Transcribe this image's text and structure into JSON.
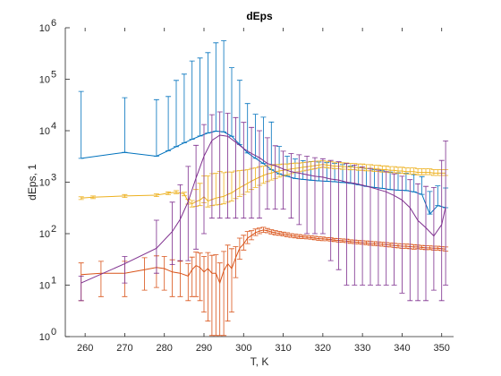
{
  "chart_data": {
    "type": "line",
    "title": "dEps",
    "xlabel": "T, K",
    "ylabel": "dEps, 1",
    "xlim": [
      255,
      353
    ],
    "ylim": [
      1,
      1000000
    ],
    "yscale": "log",
    "xticks": [
      260,
      270,
      280,
      290,
      300,
      310,
      320,
      330,
      340,
      350
    ],
    "yticks": [
      {
        "value": 1,
        "base": "10",
        "exp": "0"
      },
      {
        "value": 10,
        "base": "10",
        "exp": "1"
      },
      {
        "value": 100,
        "base": "10",
        "exp": "2"
      },
      {
        "value": 1000,
        "base": "10",
        "exp": "3"
      },
      {
        "value": 10000,
        "base": "10",
        "exp": "4"
      },
      {
        "value": 100000,
        "base": "10",
        "exp": "5"
      },
      {
        "value": 1000000,
        "base": "10",
        "exp": "6"
      }
    ],
    "grid": false,
    "legend": "none",
    "series": [
      {
        "color": "#0072BD",
        "x": [
          259,
          270,
          278,
          281,
          283,
          285,
          287,
          289,
          291,
          293,
          295,
          297,
          299,
          301,
          303,
          305,
          307,
          309,
          311,
          313,
          315,
          317,
          319,
          321,
          323,
          325,
          327,
          329,
          331,
          333,
          335,
          337,
          339,
          341,
          343,
          345,
          347,
          349,
          351
        ],
        "y": [
          2900,
          3800,
          3200,
          4100,
          4900,
          5800,
          6800,
          7900,
          9000,
          9800,
          9500,
          7800,
          5400,
          3700,
          2900,
          2300,
          1750,
          1450,
          1300,
          1180,
          1130,
          1090,
          1060,
          1040,
          1020,
          990,
          950,
          890,
          830,
          790,
          760,
          720,
          700,
          690,
          650,
          580,
          240,
          350,
          320
        ],
        "err_lo": [
          0,
          0,
          0,
          0,
          0,
          0,
          0,
          0,
          0,
          0,
          0,
          0,
          0,
          0,
          0,
          0,
          0,
          0,
          0,
          0,
          0,
          0,
          0,
          0,
          0,
          0,
          0,
          0,
          0,
          0,
          0,
          0,
          0,
          0,
          0,
          0,
          0,
          0,
          0
        ],
        "err_hi": [
          55000,
          40000,
          37000,
          42000,
          90000,
          120000,
          220000,
          250000,
          320000,
          500000,
          550000,
          160000,
          90000,
          30000,
          18000,
          16000,
          13000,
          3500,
          1900,
          1650,
          1500,
          1430,
          1400,
          1350,
          1300,
          1200,
          1100,
          1050,
          1000,
          950,
          900,
          850,
          820,
          800,
          750,
          700,
          420,
          500,
          450
        ]
      },
      {
        "color": "#D95319",
        "x": [
          259,
          264,
          270,
          275,
          278,
          280,
          282,
          284,
          286,
          287,
          288,
          289,
          290,
          291,
          292,
          293,
          294,
          295,
          296,
          297,
          298,
          299,
          300,
          301,
          302,
          303,
          304,
          305,
          306,
          307,
          308,
          309,
          310,
          311,
          312,
          313,
          314,
          315,
          316,
          317,
          318,
          319,
          320,
          321,
          322,
          323,
          324,
          325,
          326,
          327,
          328,
          329,
          330,
          331,
          332,
          333,
          334,
          335,
          336,
          337,
          338,
          339,
          340,
          341,
          342,
          343,
          344,
          345,
          346,
          347,
          348,
          349,
          350,
          351
        ],
        "y": [
          16,
          17,
          17,
          20,
          22,
          21,
          18,
          17,
          15,
          20,
          24,
          22,
          18,
          21,
          17,
          17,
          11,
          19,
          26,
          21,
          34,
          52,
          63,
          82,
          92,
          105,
          112,
          118,
          114,
          108,
          104,
          101,
          98,
          95,
          92,
          90,
          88,
          86,
          85,
          84,
          82,
          80,
          79,
          78,
          77,
          75,
          74,
          73,
          72,
          70,
          69,
          68,
          67,
          66,
          65,
          64,
          63,
          62,
          61,
          60,
          59,
          58,
          57,
          57,
          56,
          55,
          55,
          54,
          53,
          53,
          52,
          52,
          51,
          50
        ],
        "err_lo": [
          11,
          11,
          11,
          12,
          13,
          13,
          12,
          11,
          10,
          14,
          18,
          17,
          15,
          19,
          16,
          16,
          10,
          18,
          24,
          18,
          20,
          20,
          15,
          18,
          16,
          13,
          12,
          12,
          10,
          9,
          9,
          8,
          8,
          8,
          7,
          7,
          7,
          6,
          6,
          6,
          6,
          6,
          6,
          5,
          5,
          5,
          5,
          5,
          5,
          5,
          5,
          5,
          5,
          5,
          5,
          5,
          5,
          5,
          5,
          5,
          5,
          5,
          5,
          5,
          5,
          5,
          4,
          4,
          4,
          4,
          4,
          4,
          4,
          4
        ],
        "err_hi": [
          11,
          12,
          12,
          14,
          15,
          15,
          13,
          12,
          11,
          15,
          20,
          20,
          18,
          22,
          21,
          22,
          16,
          26,
          34,
          30,
          22,
          30,
          30,
          28,
          22,
          18,
          16,
          15,
          12,
          11,
          10,
          10,
          9,
          9,
          8,
          8,
          8,
          7,
          7,
          7,
          7,
          7,
          7,
          6,
          6,
          6,
          6,
          6,
          6,
          6,
          6,
          6,
          6,
          6,
          6,
          6,
          6,
          6,
          6,
          6,
          6,
          6,
          6,
          6,
          6,
          6,
          5,
          5,
          5,
          5,
          5,
          5,
          5,
          5
        ]
      },
      {
        "color": "#EDB120",
        "x": [
          259,
          262,
          270,
          278,
          281,
          283,
          285,
          286,
          287,
          288,
          289,
          290,
          291,
          292,
          293,
          294,
          295,
          296,
          297,
          298,
          299,
          300,
          301,
          302,
          303,
          304,
          305,
          306,
          307,
          308,
          309,
          310,
          311,
          312,
          313,
          314,
          315,
          316,
          317,
          318,
          319,
          320,
          321,
          322,
          323,
          324,
          325,
          326,
          327,
          328,
          329,
          330,
          331,
          332,
          333,
          334,
          335,
          336,
          337,
          338,
          339,
          340,
          341,
          342,
          343,
          344,
          345,
          346,
          347,
          348,
          349,
          350,
          351
        ],
        "y": [
          490,
          510,
          540,
          560,
          610,
          640,
          590,
          420,
          380,
          420,
          450,
          520,
          430,
          460,
          490,
          510,
          530,
          580,
          620,
          700,
          780,
          860,
          950,
          1050,
          1150,
          1250,
          1350,
          1450,
          1500,
          1600,
          1650,
          1700,
          1750,
          1800,
          1850,
          1900,
          1950,
          2000,
          2050,
          2100,
          2150,
          2200,
          2150,
          2100,
          2050,
          2050,
          2000,
          2000,
          1950,
          1950,
          1900,
          1900,
          1850,
          1850,
          1800,
          1800,
          1750,
          1750,
          1700,
          1700,
          1650,
          1650,
          1600,
          1600,
          1600,
          1550,
          1550,
          1550,
          1550,
          1500,
          1500,
          1500,
          1500
        ],
        "err_lo": [
          30,
          30,
          35,
          35,
          40,
          45,
          45,
          45,
          50,
          80,
          100,
          120,
          100,
          110,
          130,
          140,
          150,
          170,
          190,
          220,
          250,
          280,
          300,
          330,
          360,
          380,
          400,
          420,
          400,
          420,
          400,
          380,
          360,
          340,
          320,
          310,
          300,
          290,
          280,
          270,
          260,
          250,
          240,
          230,
          230,
          220,
          220,
          210,
          210,
          200,
          200,
          200,
          190,
          190,
          190,
          180,
          180,
          180,
          170,
          170,
          170,
          170,
          160,
          160,
          160,
          160,
          160,
          150,
          150,
          150,
          150,
          150,
          150
        ],
        "err_hi": [
          30,
          30,
          35,
          35,
          40,
          45,
          45,
          45,
          60,
          300,
          500,
          800,
          900,
          1000,
          1000,
          1100,
          1000,
          1000,
          950,
          950,
          900,
          850,
          800,
          800,
          750,
          750,
          700,
          650,
          600,
          600,
          550,
          550,
          500,
          500,
          500,
          450,
          450,
          450,
          450,
          450,
          420,
          420,
          400,
          400,
          400,
          380,
          380,
          370,
          370,
          360,
          350,
          350,
          340,
          340,
          330,
          330,
          320,
          320,
          310,
          310,
          300,
          300,
          300,
          290,
          290,
          280,
          280,
          270,
          270,
          260,
          260,
          260,
          250
        ]
      },
      {
        "color": "#7E2F8E",
        "x": [
          259,
          270,
          278,
          282,
          284,
          286,
          288,
          290,
          292,
          294,
          296,
          298,
          300,
          302,
          304,
          306,
          308,
          310,
          312,
          314,
          316,
          318,
          320,
          322,
          324,
          326,
          328,
          330,
          332,
          334,
          336,
          338,
          340,
          342,
          344,
          346,
          348,
          350,
          351
        ],
        "y": [
          11,
          26,
          52,
          110,
          190,
          420,
          1200,
          3200,
          6500,
          8200,
          7800,
          6000,
          4500,
          3600,
          3000,
          2300,
          2100,
          1800,
          1600,
          1500,
          1400,
          1300,
          1250,
          1150,
          1100,
          1000,
          950,
          880,
          800,
          720,
          650,
          550,
          450,
          320,
          180,
          130,
          90,
          150,
          330
        ],
        "err_lo": [
          6,
          15,
          35,
          85,
          160,
          390,
          1150,
          3100,
          6300,
          8000,
          7600,
          5800,
          4300,
          3400,
          2800,
          2000,
          1800,
          1500,
          1400,
          1350,
          1300,
          1200,
          1150,
          1120,
          1080,
          990,
          940,
          870,
          790,
          710,
          640,
          540,
          443,
          315,
          175,
          125,
          82,
          145,
          320
        ],
        "err_hi": [
          4,
          10,
          130,
          300,
          700,
          1600,
          4000,
          10000,
          14000,
          15000,
          14000,
          12000,
          10000,
          8000,
          7000,
          5000,
          3000,
          2200,
          2000,
          1900,
          1800,
          1700,
          1600,
          1500,
          1400,
          1300,
          1200,
          1100,
          1050,
          1000,
          950,
          900,
          850,
          800,
          750,
          700,
          700,
          2500,
          6000
        ]
      }
    ]
  }
}
